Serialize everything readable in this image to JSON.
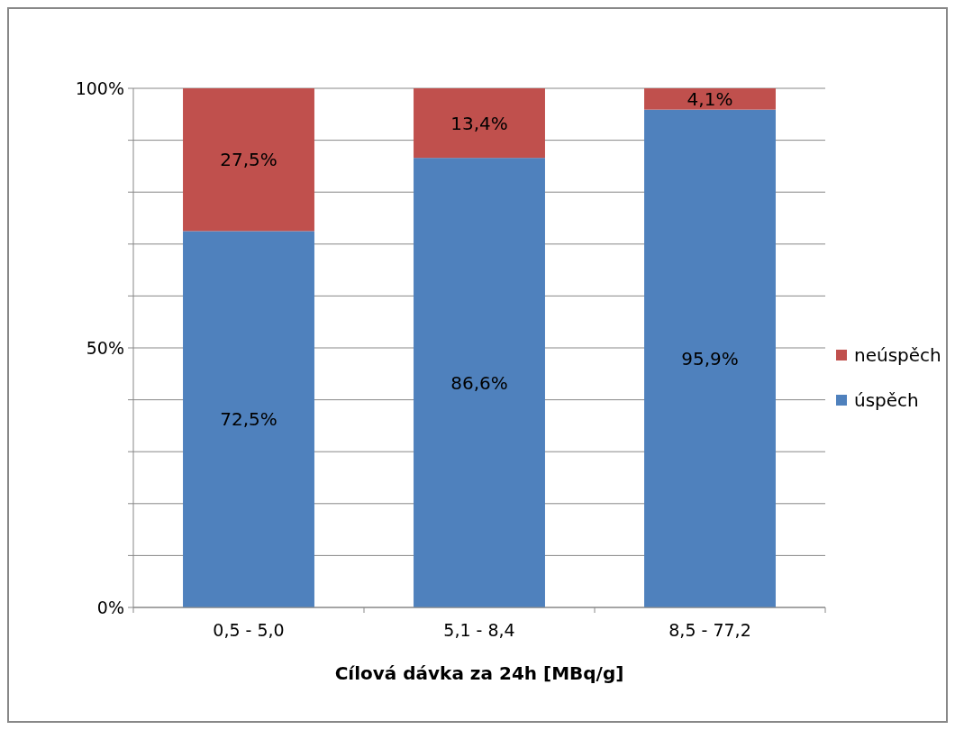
{
  "chart_data": {
    "type": "bar",
    "stacked": true,
    "xlabel": "Cílová dávka za 24h [MBq/g]",
    "categories": [
      "0,5 - 5,0",
      "5,1 - 8,4",
      "8,5 - 77,2"
    ],
    "series": [
      {
        "name": "úspěch",
        "color": "#4f81bd",
        "values": [
          72.5,
          86.6,
          95.9
        ],
        "value_labels": [
          "72,5%",
          "86,6%",
          "95,9%"
        ]
      },
      {
        "name": "neúspěch",
        "color": "#c0504d",
        "values": [
          27.5,
          13.4,
          4.1
        ],
        "value_labels": [
          "27,5%",
          "13,4%",
          "4,1%"
        ]
      }
    ],
    "ylim": [
      0,
      100
    ],
    "yticks": [
      {
        "value": 0,
        "label": "0%"
      },
      {
        "value": 10,
        "label": null
      },
      {
        "value": 20,
        "label": null
      },
      {
        "value": 30,
        "label": null
      },
      {
        "value": 40,
        "label": null
      },
      {
        "value": 50,
        "label": "50%"
      },
      {
        "value": 60,
        "label": null
      },
      {
        "value": 70,
        "label": null
      },
      {
        "value": 80,
        "label": null
      },
      {
        "value": 90,
        "label": null
      },
      {
        "value": 100,
        "label": "100%"
      }
    ],
    "grid": "y",
    "legend": "right"
  }
}
